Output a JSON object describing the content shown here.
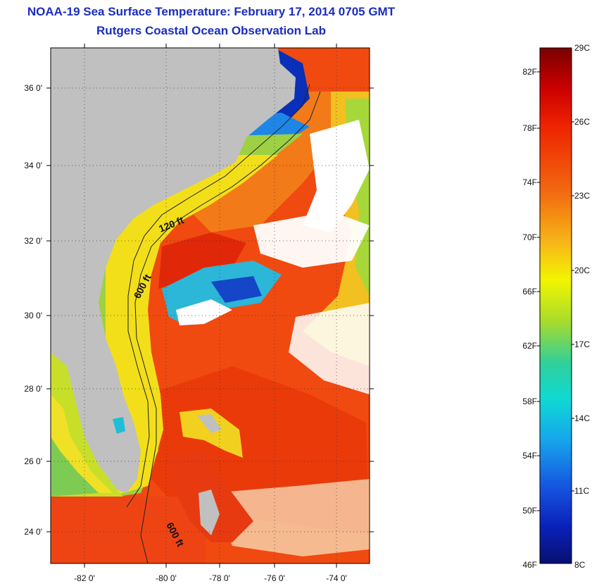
{
  "header": {
    "title": "NOAA-19 Sea Surface Temperature:  February 17, 2014 0705 GMT",
    "subtitle": "Rutgers Coastal Ocean Observation Lab"
  },
  "map": {
    "lat_labels": [
      "36 0'",
      "34 0'",
      "32 0'",
      "30 0'",
      "28 0'",
      "26 0'",
      "24 0'"
    ],
    "lon_labels": [
      "-82 0'",
      "-80 0'",
      "-78 0'",
      "-76 0'",
      "-74 0'"
    ],
    "contour_labels": [
      "120 ft",
      "600 ft",
      "600 ft"
    ],
    "colors": {
      "land": "#c0c0c0",
      "cloud": "#ffffff",
      "warm_water": "#f24a12",
      "cold_water": "#0a2fb8"
    }
  },
  "colorbar": {
    "celsius": [
      "29C",
      "26C",
      "23C",
      "20C",
      "17C",
      "14C",
      "11C",
      "8C"
    ],
    "fahrenheit": [
      "82F",
      "78F",
      "74F",
      "70F",
      "66F",
      "62F",
      "58F",
      "54F",
      "50F",
      "46F"
    ],
    "range_c": [
      8,
      29
    ]
  }
}
